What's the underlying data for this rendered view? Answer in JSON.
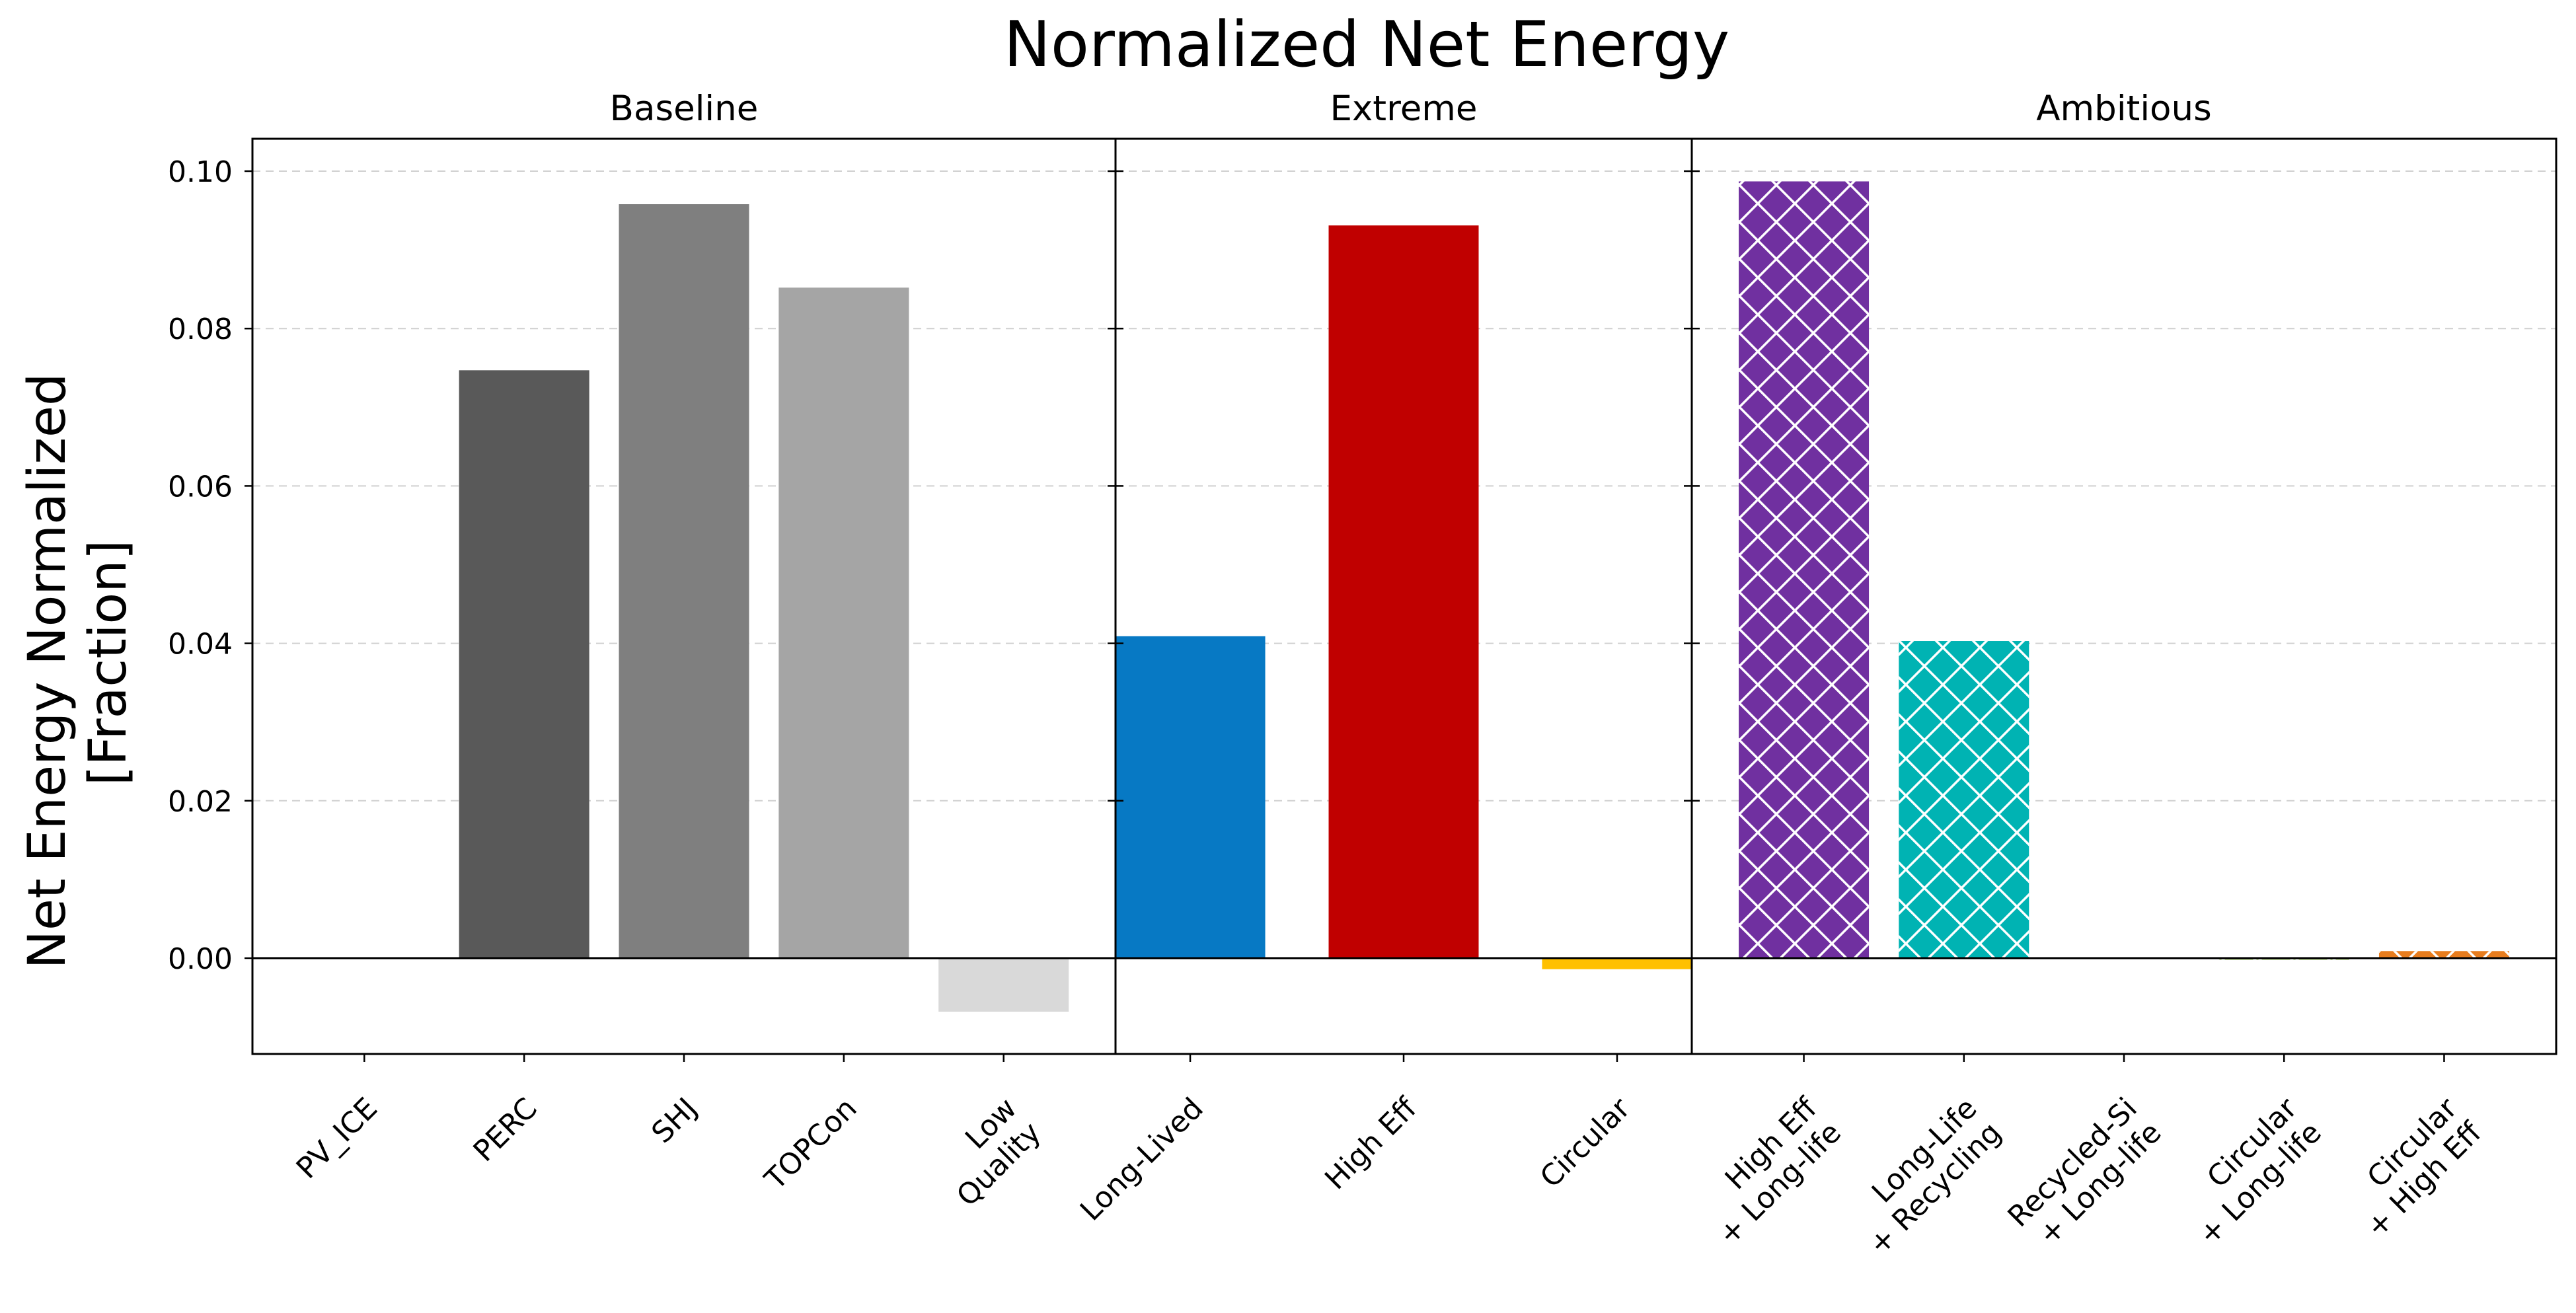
{
  "chart_data": {
    "type": "bar",
    "title": "Normalized Net Energy",
    "ylabel": "Net Energy Normalized\n[Fraction]",
    "xlabel": "",
    "ylim": [
      -0.012,
      0.104
    ],
    "yticks": [
      "0.00",
      "0.02",
      "0.04",
      "0.06",
      "0.08",
      "0.10"
    ],
    "ytick_values": [
      0,
      0.02,
      0.04,
      0.06,
      0.08,
      0.1
    ],
    "grid": "horizontal dashed",
    "panels": [
      {
        "title": "Baseline",
        "categories": [
          "PV_ICE",
          "PERC",
          "SHJ",
          "TOPCon",
          "Low\nQuality"
        ],
        "values": [
          0.0,
          0.0747,
          0.0958,
          0.0852,
          -0.0068
        ],
        "colors": [
          "#000000",
          "#595959",
          "#7f7f7f",
          "#a5a5a5",
          "#d9d9d9"
        ],
        "hatch": false
      },
      {
        "title": "Extreme",
        "categories": [
          "Long-Lived",
          "High Eff",
          "Circular"
        ],
        "values": [
          0.0409,
          0.0931,
          -0.0014
        ],
        "colors": [
          "#0779c4",
          "#c00000",
          "#ffc000"
        ],
        "hatch": false
      },
      {
        "title": "Ambitious",
        "categories": [
          "High Eff\n+ Long-life",
          "Long-Life\n+ Recycling",
          "Recycled-Si\n+ Long-life",
          "Circular\n+ Long-life",
          "Circular\n+ High Eff"
        ],
        "values": [
          0.0987,
          0.0403,
          0.0001,
          -0.0002,
          0.0009
        ],
        "colors": [
          "#7030a0",
          "#00b3b3",
          "#3d9a50",
          "#8ab84a",
          "#e87d1e"
        ],
        "hatch": true
      }
    ]
  }
}
